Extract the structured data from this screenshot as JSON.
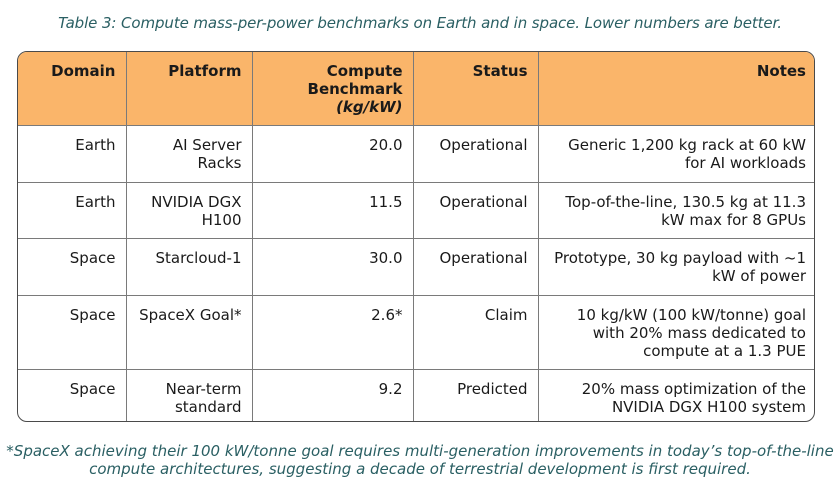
{
  "caption": "Table 3: Compute mass-per-power benchmarks on Earth and in space. Lower numbers are better.",
  "table": {
    "headers": {
      "domain": "Domain",
      "platform": "Platform",
      "benchmark_line1": "Compute",
      "benchmark_line2": "Benchmark",
      "benchmark_unit": "(kg/kW)",
      "status": "Status",
      "notes": "Notes"
    },
    "rows": [
      {
        "domain": "Earth",
        "platform": "AI Server Racks",
        "benchmark": "20.0",
        "status": "Operational",
        "notes": "Generic 1,200 kg rack at 60 kW for AI workloads"
      },
      {
        "domain": "Earth",
        "platform": "NVIDIA DGX H100",
        "benchmark": "11.5",
        "status": "Operational",
        "notes": "Top-of-the-line, 130.5 kg at 11.3 kW max for 8 GPUs"
      },
      {
        "domain": "Space",
        "platform": "Starcloud-1",
        "benchmark": "30.0",
        "status": "Operational",
        "notes": "Prototype, 30 kg payload with ~1 kW of power"
      },
      {
        "domain": "Space",
        "platform": "SpaceX Goal*",
        "benchmark": "2.6*",
        "status": "Claim",
        "notes": "10 kg/kW (100 kW/tonne) goal with 20% mass dedicated to compute at a 1.3 PUE"
      },
      {
        "domain": "Space",
        "platform": "Near-term standard",
        "benchmark": "9.2",
        "status": "Predicted",
        "notes": "20% mass optimization of the NVIDIA DGX H100 system"
      }
    ]
  },
  "footnote": {
    "line1": "*SpaceX achieving their 100 kW/tonne goal requires multi-generation improvements in today’s top-of-the-line",
    "line2": "compute architectures, suggesting a decade of terrestrial development is first required."
  }
}
